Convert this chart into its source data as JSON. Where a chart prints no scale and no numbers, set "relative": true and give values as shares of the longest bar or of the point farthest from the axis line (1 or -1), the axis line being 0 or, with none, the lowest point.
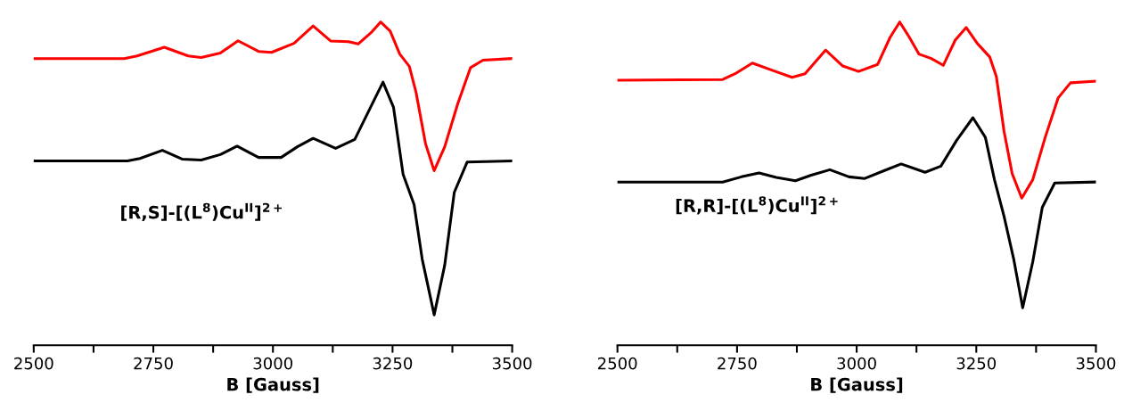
{
  "chart_data": [
    {
      "type": "line",
      "relative": true,
      "xlabel": "B [Gauss]",
      "tick_labels": "x",
      "grid": false,
      "legend": false,
      "marker": "none",
      "line_style": "solid",
      "xlim": [
        2500,
        3500
      ],
      "xticks": [
        2500,
        {
          "value": 2625,
          "label": null
        },
        2750,
        {
          "value": 2875,
          "label": null
        },
        3000,
        {
          "value": 3125,
          "label": null
        },
        3250,
        {
          "value": 3375,
          "label": null
        },
        3500
      ],
      "annotations": [
        "[R,S]-[(L$^{8}$)Cu$^{II}$]$^{2+}$"
      ],
      "series": [
        {
          "color": "#ff0000",
          "x": [
            2500,
            2689,
            2716,
            2773,
            2823,
            2850,
            2890,
            2927,
            2970,
            2997,
            3044,
            3084,
            3121,
            3158,
            3178,
            3205,
            3225,
            3245,
            3265,
            3285,
            3299,
            3319,
            3337,
            3359,
            3386,
            3413,
            3439,
            3500
          ],
          "values": [
            0.887,
            0.887,
            0.895,
            0.922,
            0.895,
            0.89,
            0.904,
            0.942,
            0.909,
            0.906,
            0.934,
            0.988,
            0.941,
            0.939,
            0.932,
            0.967,
            1.0,
            0.972,
            0.901,
            0.863,
            0.783,
            0.623,
            0.54,
            0.614,
            0.746,
            0.859,
            0.882,
            0.887
          ]
        },
        {
          "color": "#000000",
          "x": [
            2500,
            2696,
            2722,
            2769,
            2810,
            2850,
            2890,
            2925,
            2970,
            3017,
            3051,
            3084,
            3131,
            3171,
            3198,
            3230,
            3252,
            3272,
            3295,
            3312,
            3337,
            3359,
            3379,
            3406,
            3500
          ],
          "values": [
            0.57,
            0.57,
            0.578,
            0.603,
            0.576,
            0.573,
            0.59,
            0.616,
            0.581,
            0.581,
            0.614,
            0.64,
            0.609,
            0.637,
            0.718,
            0.814,
            0.736,
            0.529,
            0.435,
            0.266,
            0.094,
            0.248,
            0.473,
            0.567,
            0.57
          ]
        }
      ]
    },
    {
      "type": "line",
      "relative": true,
      "xlabel": "B [Gauss]",
      "tick_labels": "x",
      "grid": false,
      "legend": false,
      "marker": "none",
      "line_style": "solid",
      "xlim": [
        2500,
        3500
      ],
      "xticks": [
        2500,
        {
          "value": 2625,
          "label": null
        },
        2750,
        {
          "value": 2875,
          "label": null
        },
        3000,
        {
          "value": 3125,
          "label": null
        },
        3250,
        {
          "value": 3375,
          "label": null
        },
        3500
      ],
      "annotations": [
        "[R,R]-[(L$^{8}$)Cu$^{II}$]$^{2+}$"
      ],
      "series": [
        {
          "color": "#ff0000",
          "x": [
            2500,
            2720,
            2746,
            2782,
            2825,
            2865,
            2892,
            2935,
            2971,
            3004,
            3044,
            3070,
            3090,
            3110,
            3130,
            3156,
            3181,
            3206,
            3229,
            3252,
            3278,
            3292,
            3308,
            3325,
            3345,
            3368,
            3394,
            3421,
            3447,
            3500
          ],
          "values": [
            0.82,
            0.822,
            0.84,
            0.873,
            0.85,
            0.829,
            0.84,
            0.913,
            0.864,
            0.847,
            0.869,
            0.953,
            1.0,
            0.953,
            0.901,
            0.887,
            0.866,
            0.944,
            0.983,
            0.934,
            0.892,
            0.831,
            0.662,
            0.531,
            0.455,
            0.512,
            0.643,
            0.765,
            0.812,
            0.817
          ]
        },
        {
          "color": "#000000",
          "x": [
            2500,
            2720,
            2759,
            2796,
            2832,
            2872,
            2905,
            2944,
            2984,
            3017,
            3057,
            3093,
            3143,
            3176,
            3209,
            3243,
            3269,
            3288,
            3308,
            3328,
            3347,
            3368,
            3388,
            3414,
            3500
          ],
          "values": [
            0.505,
            0.505,
            0.521,
            0.533,
            0.519,
            0.509,
            0.526,
            0.543,
            0.521,
            0.516,
            0.54,
            0.561,
            0.535,
            0.554,
            0.634,
            0.704,
            0.643,
            0.512,
            0.399,
            0.268,
            0.116,
            0.258,
            0.427,
            0.502,
            0.505
          ]
        }
      ]
    }
  ]
}
